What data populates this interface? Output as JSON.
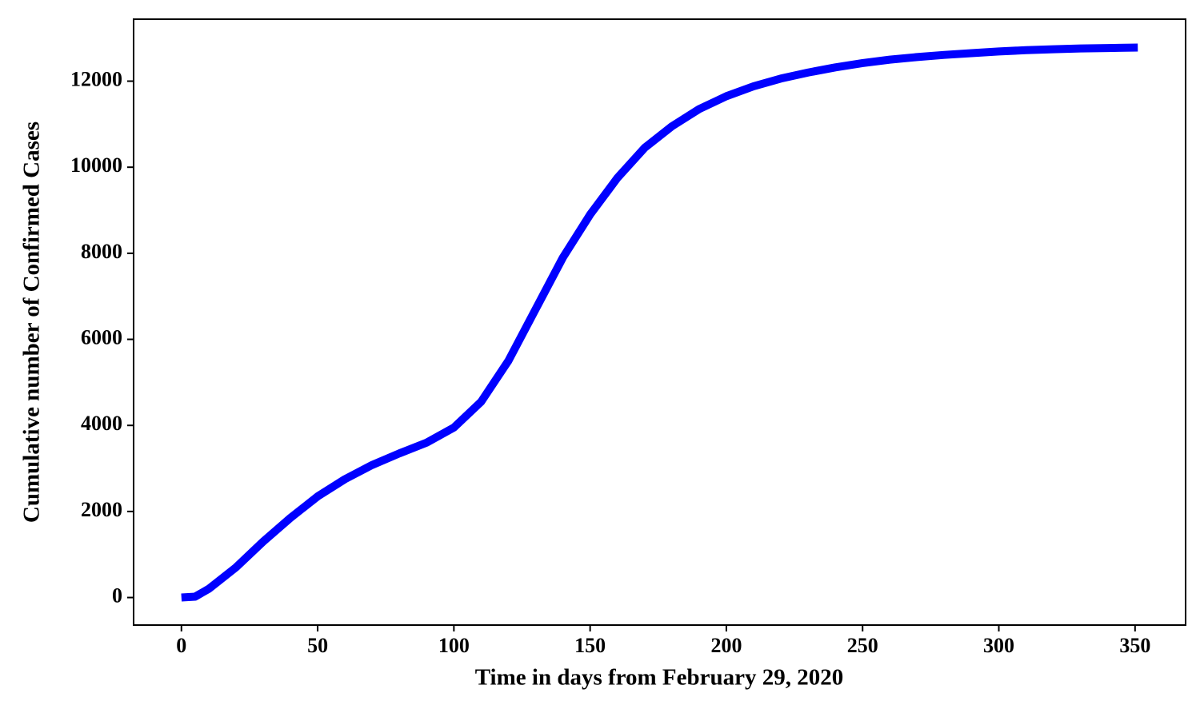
{
  "chart_data": {
    "type": "line",
    "x_label": "Time in days from February 29, 2020",
    "y_label": "Cumulative number of Confirmed Cases",
    "x": [
      0,
      5,
      10,
      20,
      30,
      40,
      50,
      60,
      70,
      80,
      90,
      100,
      110,
      120,
      130,
      140,
      150,
      160,
      170,
      180,
      190,
      200,
      210,
      220,
      230,
      240,
      250,
      260,
      270,
      280,
      290,
      300,
      310,
      320,
      330,
      340,
      351
    ],
    "series": [
      {
        "color": "#0000ff",
        "values": [
          0,
          20,
          200,
          700,
          1300,
          1850,
          2350,
          2750,
          3080,
          3350,
          3600,
          3950,
          4550,
          5500,
          6700,
          7900,
          8900,
          9750,
          10450,
          10950,
          11350,
          11650,
          11880,
          12060,
          12200,
          12320,
          12420,
          12500,
          12560,
          12610,
          12650,
          12690,
          12720,
          12740,
          12760,
          12770,
          12780
        ]
      }
    ],
    "xlim": [
      -17.55,
      368.55
    ],
    "ylim": [
      -640,
      13440
    ],
    "xticks": [
      0,
      50,
      100,
      150,
      200,
      250,
      300,
      350
    ],
    "yticks": [
      0,
      2000,
      4000,
      6000,
      8000,
      10000,
      12000
    ],
    "grid": false
  }
}
